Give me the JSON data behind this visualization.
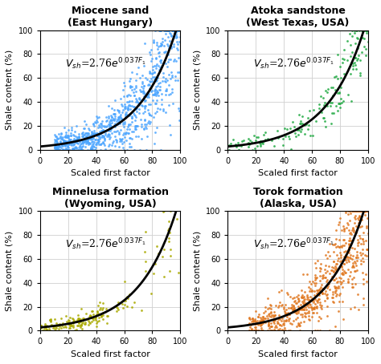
{
  "subplots": [
    {
      "title": "Miocene sand\n(East Hungary)",
      "color": "#4da6ff",
      "seed": 10
    },
    {
      "title": "Atoka sandstone\n(West Texas, USA)",
      "color": "#22aa44",
      "seed": 20
    },
    {
      "title": "Minnelusa formation\n(Wyoming, USA)",
      "color": "#aaaa00",
      "seed": 30
    },
    {
      "title": "Torok formation\n(Alaska, USA)",
      "color": "#e07820",
      "seed": 40
    }
  ],
  "xlabel": "Scaled first factor",
  "ylabel": "Shale content (%)",
  "xlim": [
    0,
    100
  ],
  "ylim": [
    0,
    100
  ],
  "curve_a": 2.76,
  "curve_b": 0.037,
  "background_color": "#ffffff",
  "grid_color": "#d0d0d0",
  "title_fontsize": 9,
  "label_fontsize": 8,
  "eq_fontsize": 9,
  "tick_fontsize": 7
}
